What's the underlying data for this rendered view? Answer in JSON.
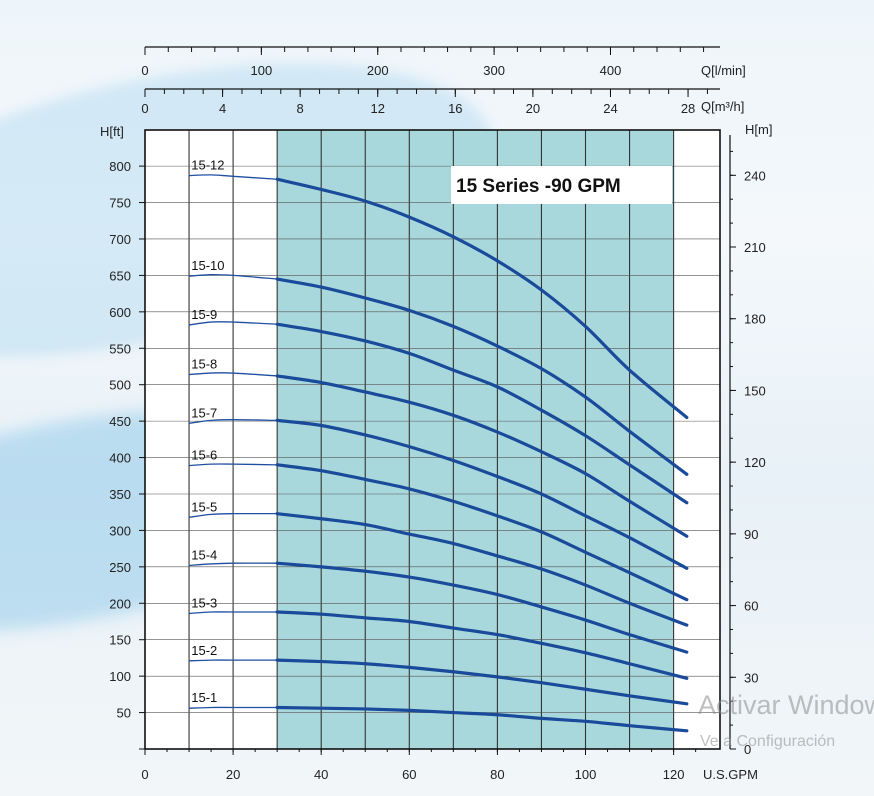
{
  "chart_data": {
    "type": "line",
    "title": "15 Series -90 GPM",
    "bottom_axis": {
      "unit_label": "U.S.GPM",
      "range": [
        0,
        130
      ],
      "ticks": [
        "0",
        "20",
        "40",
        "60",
        "80",
        "100",
        "120"
      ]
    },
    "top_axis_lmin": {
      "unit_label": "Q[l/min]",
      "range": [
        0,
        500
      ],
      "ticks": [
        "0",
        "100",
        "200",
        "300",
        "400"
      ]
    },
    "top_axis_m3h": {
      "unit_label": "Q[m³/h]",
      "range": [
        0,
        30
      ],
      "ticks": [
        "0",
        "4",
        "8",
        "12",
        "16",
        "20",
        "24",
        "28"
      ]
    },
    "left_axis": {
      "unit_label": "H[ft]",
      "range": [
        0,
        850
      ],
      "ticks": [
        "50",
        "100",
        "150",
        "200",
        "250",
        "300",
        "350",
        "400",
        "450",
        "500",
        "550",
        "600",
        "650",
        "700",
        "750",
        "800"
      ]
    },
    "right_axis": {
      "unit_label": "H[m]",
      "range": [
        0,
        260
      ],
      "ticks": [
        "0",
        "30",
        "60",
        "90",
        "120",
        "150",
        "180",
        "210",
        "240"
      ]
    },
    "grid": true,
    "recommended_range_gpm": [
      30,
      120
    ],
    "series": [
      {
        "name": "15-12",
        "x": [
          10,
          15,
          20,
          30,
          40,
          50,
          60,
          70,
          80,
          90,
          100,
          110,
          123
        ],
        "y": [
          787,
          788,
          786,
          782,
          768,
          752,
          730,
          703,
          670,
          630,
          580,
          520,
          455
        ]
      },
      {
        "name": "15-10",
        "x": [
          10,
          15,
          20,
          30,
          40,
          50,
          60,
          70,
          80,
          90,
          100,
          110,
          123
        ],
        "y": [
          649,
          651,
          650,
          645,
          634,
          619,
          602,
          580,
          553,
          522,
          483,
          436,
          377
        ]
      },
      {
        "name": "15-9",
        "x": [
          10,
          15,
          20,
          30,
          40,
          50,
          60,
          70,
          80,
          90,
          100,
          110,
          123
        ],
        "y": [
          582,
          586,
          586,
          583,
          573,
          560,
          543,
          520,
          497,
          465,
          430,
          390,
          338
        ]
      },
      {
        "name": "15-8",
        "x": [
          10,
          15,
          20,
          30,
          40,
          50,
          60,
          70,
          80,
          90,
          100,
          110,
          123
        ],
        "y": [
          514,
          516,
          516,
          512,
          503,
          490,
          476,
          458,
          435,
          408,
          378,
          340,
          292
        ]
      },
      {
        "name": "15-7",
        "x": [
          10,
          15,
          20,
          30,
          40,
          50,
          60,
          70,
          80,
          90,
          100,
          110,
          123
        ],
        "y": [
          447,
          451,
          452,
          451,
          444,
          431,
          415,
          396,
          374,
          350,
          320,
          290,
          248
        ]
      },
      {
        "name": "15-6",
        "x": [
          10,
          15,
          20,
          30,
          40,
          50,
          60,
          70,
          80,
          90,
          100,
          110,
          123
        ],
        "y": [
          389,
          391,
          391,
          390,
          382,
          370,
          357,
          340,
          320,
          298,
          270,
          242,
          205
        ]
      },
      {
        "name": "15-5",
        "x": [
          10,
          15,
          20,
          30,
          40,
          50,
          60,
          70,
          80,
          90,
          100,
          110,
          123
        ],
        "y": [
          318,
          322,
          323,
          323,
          316,
          308,
          295,
          282,
          265,
          247,
          225,
          200,
          170
        ]
      },
      {
        "name": "15-4",
        "x": [
          10,
          15,
          20,
          30,
          40,
          50,
          60,
          70,
          80,
          90,
          100,
          110,
          123
        ],
        "y": [
          252,
          254,
          255,
          255,
          250,
          244,
          236,
          225,
          212,
          195,
          177,
          157,
          133
        ]
      },
      {
        "name": "15-3",
        "x": [
          10,
          15,
          20,
          30,
          40,
          50,
          60,
          70,
          80,
          90,
          100,
          110,
          123
        ],
        "y": [
          186,
          188,
          188,
          188,
          185,
          180,
          175,
          166,
          157,
          145,
          132,
          117,
          97
        ]
      },
      {
        "name": "15-2",
        "x": [
          10,
          15,
          20,
          30,
          40,
          50,
          60,
          70,
          80,
          90,
          100,
          110,
          123
        ],
        "y": [
          121,
          122,
          122,
          122,
          120,
          117,
          112,
          106,
          99,
          91,
          82,
          73,
          62
        ]
      },
      {
        "name": "15-1",
        "x": [
          10,
          15,
          20,
          30,
          40,
          50,
          60,
          70,
          80,
          90,
          100,
          110,
          123
        ],
        "y": [
          56,
          57,
          57,
          57,
          56,
          55,
          53,
          50,
          47,
          42,
          38,
          32,
          25
        ]
      }
    ]
  },
  "watermark": {
    "line1": "Activar Windows",
    "line2": "Ve a Configuración"
  }
}
